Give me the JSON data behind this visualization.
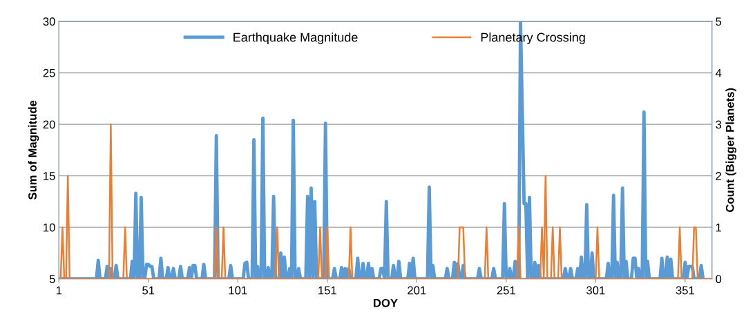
{
  "chart_data": {
    "type": "line",
    "xlabel": "DOY",
    "ylabel": "Sum of Magnitude",
    "y2label": "Count (Bigger Planets)",
    "xlim": [
      1,
      366
    ],
    "xticks": [
      1,
      51,
      101,
      151,
      201,
      251,
      301,
      351
    ],
    "ylim": [
      5,
      30
    ],
    "yticks": [
      5,
      10,
      15,
      20,
      25,
      30
    ],
    "y2lim": [
      0,
      5
    ],
    "y2ticks": [
      0,
      1,
      2,
      3,
      4,
      5
    ],
    "grid": "y",
    "legend": "top",
    "marker": "none",
    "line_style": "solid",
    "series": [
      {
        "name": "Earthquake Magnitude",
        "color": "#5b9bd5",
        "x": [
          1,
          22,
          23,
          24,
          27,
          28,
          29,
          30,
          31,
          32,
          33,
          34,
          41,
          42,
          43,
          44,
          45,
          46,
          47,
          48,
          49,
          50,
          51,
          52,
          53,
          54,
          57,
          58,
          59,
          61,
          62,
          63,
          64,
          65,
          66,
          68,
          69,
          70,
          73,
          74,
          75,
          76,
          77,
          78,
          81,
          82,
          83,
          88,
          89,
          90,
          96,
          97,
          98,
          104,
          105,
          106,
          107,
          109,
          110,
          111,
          112,
          113,
          114,
          115,
          116,
          117,
          118,
          119,
          120,
          121,
          122,
          124,
          125,
          126,
          127,
          128,
          129,
          130,
          131,
          132,
          133,
          134,
          135,
          136,
          139,
          140,
          141,
          142,
          143,
          144,
          145,
          149,
          150,
          151,
          154,
          155,
          156,
          158,
          159,
          160,
          161,
          162,
          163,
          164,
          167,
          168,
          169,
          170,
          171,
          172,
          173,
          174,
          175,
          176,
          177,
          180,
          181,
          182,
          183,
          184,
          185,
          187,
          188,
          189,
          190,
          191,
          192,
          196,
          197,
          198,
          199,
          200,
          207,
          208,
          209,
          210,
          211,
          217,
          218,
          219,
          221,
          222,
          223,
          224,
          225,
          226,
          227,
          228,
          235,
          236,
          237,
          243,
          244,
          245,
          249,
          250,
          251,
          252,
          253,
          254,
          255,
          256,
          257,
          258,
          259,
          261,
          262,
          263,
          264,
          265,
          266,
          267,
          268,
          269,
          270,
          283,
          284,
          285,
          286,
          287,
          288,
          290,
          291,
          292,
          293,
          294,
          295,
          296,
          297,
          298,
          299,
          300,
          307,
          308,
          309,
          310,
          311,
          312,
          313,
          314,
          315,
          316,
          317,
          318,
          319,
          321,
          322,
          323,
          324,
          325,
          326,
          327,
          328,
          329,
          330,
          331,
          337,
          338,
          339,
          340,
          341,
          342,
          343,
          344,
          350,
          351,
          352,
          353,
          354,
          355,
          356,
          359,
          360,
          361
        ],
        "values": [
          5,
          5,
          6.8,
          5,
          5,
          6.2,
          5,
          6.0,
          5,
          5,
          6.3,
          5,
          5,
          6.7,
          5,
          13.3,
          5,
          5,
          12.9,
          5,
          5,
          6.4,
          6.4,
          6.2,
          6.2,
          5,
          5,
          7.0,
          5,
          5,
          6.1,
          5,
          5,
          6.0,
          5,
          5,
          6.2,
          5,
          5,
          6.1,
          5,
          6.3,
          6.3,
          5,
          5,
          6.4,
          5,
          5,
          18.9,
          5,
          5,
          6.3,
          5,
          5,
          6.5,
          6.6,
          5,
          5,
          18.5,
          5,
          6.2,
          5,
          5,
          20.6,
          5,
          5,
          6.1,
          5,
          5,
          13.0,
          5,
          5,
          7.5,
          5,
          7.1,
          5,
          5,
          6.0,
          5,
          20.4,
          5,
          5,
          6.0,
          5,
          5,
          13.0,
          5,
          13.8,
          5,
          12.5,
          5,
          5,
          20.1,
          5,
          5,
          6.0,
          5,
          5,
          6.1,
          5,
          6.0,
          5,
          6.0,
          5,
          5,
          7.0,
          5,
          5,
          6.5,
          5,
          5,
          6.5,
          5,
          6.0,
          5,
          5,
          6.0,
          6.0,
          5,
          12.5,
          5,
          5,
          6.3,
          5,
          5,
          6.7,
          5,
          5,
          6.5,
          5,
          7.0,
          5,
          5,
          13.9,
          5,
          6.3,
          5,
          5,
          6.0,
          5,
          5,
          6.6,
          5,
          6.5,
          5,
          5,
          6.3,
          5,
          5,
          6.0,
          5,
          5,
          6.0,
          5,
          5,
          12.3,
          5,
          5,
          6.0,
          5,
          5,
          6.7,
          5,
          5,
          30,
          12.3,
          12.3,
          5,
          12.9,
          5,
          5,
          6.6,
          5,
          6.3,
          5,
          5,
          6.0,
          5,
          5,
          6.0,
          5,
          5,
          6.0,
          5,
          7.1,
          5,
          5,
          12.2,
          5,
          5,
          7.5,
          5,
          5,
          6.5,
          5,
          5,
          13.1,
          5,
          6.6,
          5,
          5,
          13.8,
          5,
          6.7,
          5,
          5,
          7.0,
          7.0,
          5,
          6.0,
          5,
          5,
          21.2,
          5,
          6.7,
          5,
          5,
          7.0,
          5,
          5,
          7.1,
          5,
          6.9,
          5,
          5,
          6.6,
          5,
          6.2,
          6.2,
          6.2,
          5,
          5,
          6.3,
          5
        ]
      },
      {
        "name": "Planetary Crossing",
        "color": "#ed7d31",
        "axis": "y2",
        "x": [
          1,
          2,
          3,
          4,
          5,
          6,
          7,
          29,
          30,
          31,
          37,
          38,
          39,
          88,
          89,
          90,
          92,
          93,
          94,
          122,
          123,
          124,
          146,
          147,
          148,
          150,
          151,
          152,
          163,
          164,
          165,
          224,
          225,
          227,
          228,
          239,
          240,
          241,
          257,
          258,
          259,
          270,
          271,
          272,
          273,
          274,
          276,
          277,
          278,
          280,
          281,
          282,
          301,
          302,
          303,
          347,
          348,
          349,
          355,
          356,
          357,
          358,
          365
        ],
        "values": [
          0,
          0,
          1,
          0,
          0,
          2,
          0,
          0,
          3,
          0,
          0,
          1,
          0,
          0,
          1,
          0,
          0,
          1,
          0,
          0,
          1,
          0,
          0,
          1,
          0,
          0,
          1,
          0,
          0,
          1,
          0,
          0,
          1,
          1,
          0,
          0,
          1,
          0,
          0,
          1,
          0,
          0,
          1,
          0,
          2,
          0,
          0,
          1,
          0,
          0,
          1,
          0,
          0,
          1,
          0,
          0,
          1,
          0,
          0,
          1,
          1,
          0,
          0
        ]
      }
    ]
  }
}
